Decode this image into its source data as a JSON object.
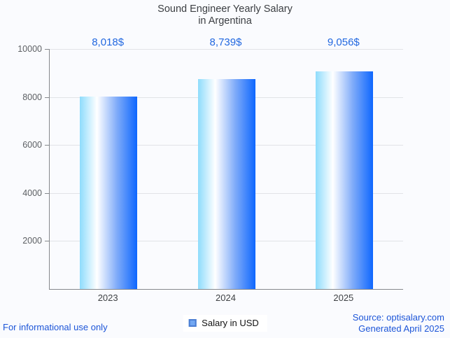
{
  "header": {
    "title_line1": "Sound Engineer Yearly Salary",
    "title_line2": "in Argentina"
  },
  "chart_data": {
    "type": "bar",
    "title": "Sound Engineer Yearly Salary in Argentina",
    "categories": [
      "2023",
      "2024",
      "2025"
    ],
    "values": [
      8018,
      8739,
      9056
    ],
    "value_labels": [
      "8,018$",
      "8,739$",
      "9,056$"
    ],
    "series_name": "Salary in USD",
    "xlabel": "",
    "ylabel": "",
    "ylim": [
      0,
      10000
    ],
    "yticks": [
      2000,
      4000,
      6000,
      8000,
      10000
    ],
    "grid": true,
    "legend_position": "bottom",
    "bar_gradient": [
      "#8edcfc",
      "#ffffff",
      "#7fabf9",
      "#0e67fe"
    ]
  },
  "footer": {
    "disclaimer": "For informational use only",
    "source_line1": "Source: optisalary.com",
    "source_line2": "Generated April 2025"
  },
  "colors": {
    "accent_blue": "#2268e0",
    "footer_blue": "#1c55d8",
    "axis_gray": "#85888c",
    "grid_gray": "#e1e3e7",
    "title_gray": "#3b3e42",
    "background": "#fafbfe",
    "legend_marker_fill": "#72a7f2",
    "legend_marker_border": "#4a7dd2"
  }
}
